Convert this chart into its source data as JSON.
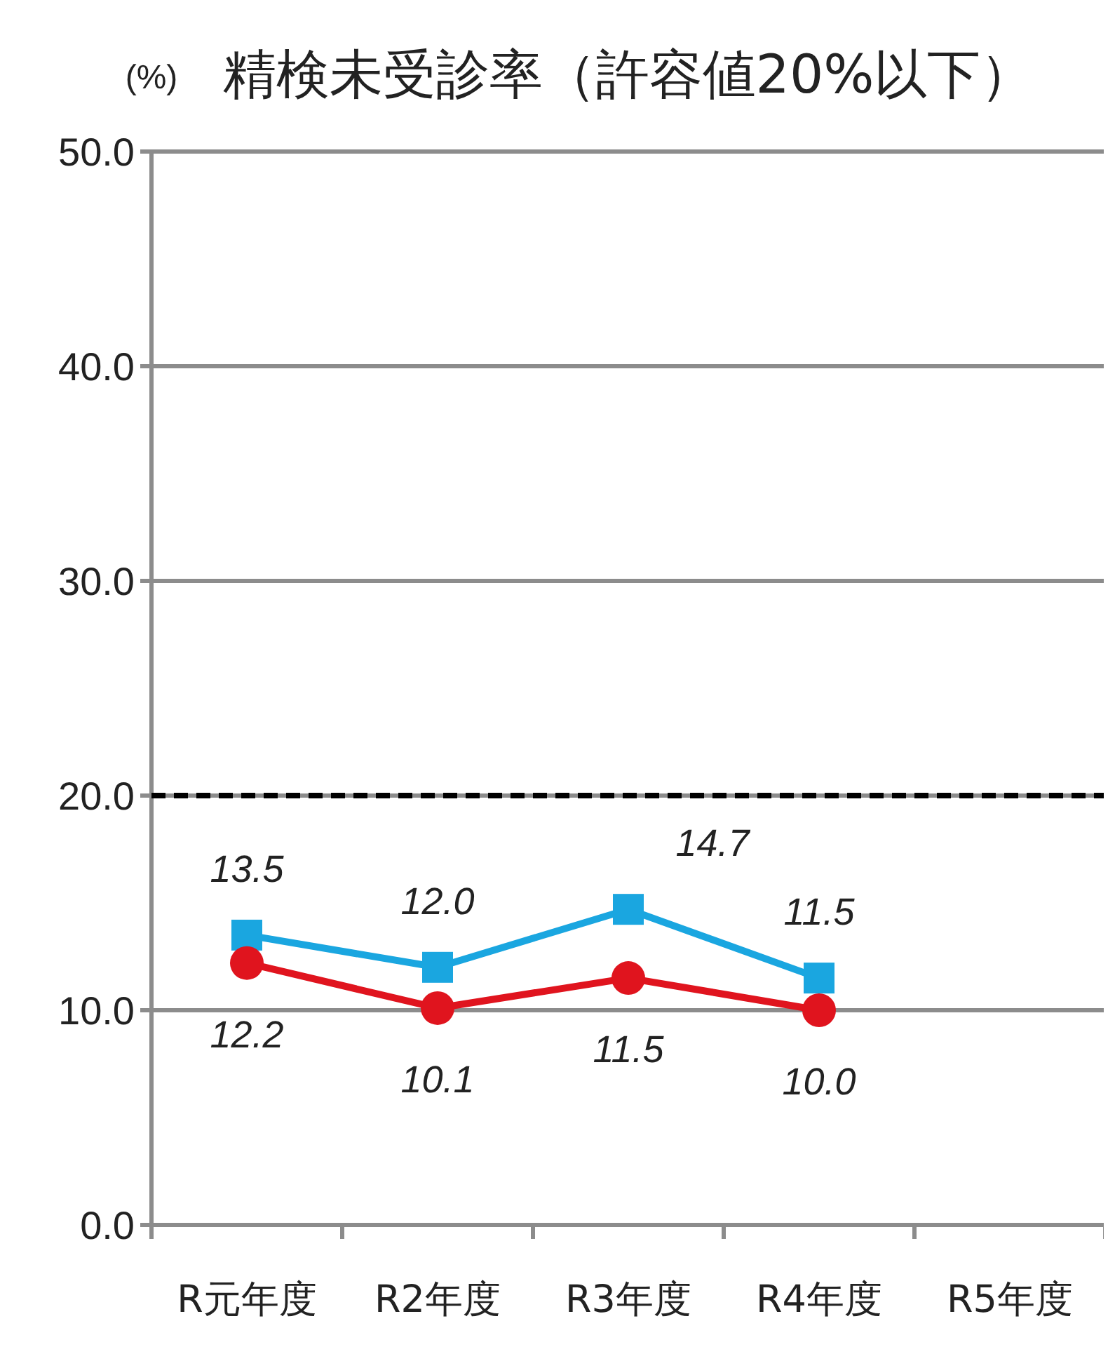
{
  "chart_data": {
    "type": "line",
    "title": "精検未受診率（許容値20%以下）",
    "ylabel": "(%)",
    "categories": [
      "R元年度",
      "R2年度",
      "R3年度",
      "R4年度",
      "R5年度"
    ],
    "series": [
      {
        "color": "#1aa6e0",
        "marker": "square",
        "values": [
          13.5,
          12.0,
          14.7,
          11.5,
          null
        ],
        "value_labels": [
          "13.5",
          "12.0",
          "14.7",
          "11.5",
          null
        ]
      },
      {
        "color": "#e0141e",
        "marker": "circle",
        "values": [
          12.2,
          10.1,
          11.5,
          10.0,
          null
        ],
        "value_labels": [
          "12.2",
          "10.1",
          "11.5",
          "10.0",
          null
        ]
      }
    ],
    "ylim": [
      0,
      50
    ],
    "yticks": [
      {
        "value": 0,
        "label": "0.0"
      },
      {
        "value": 10,
        "label": "10.0"
      },
      {
        "value": 20,
        "label": "20.0"
      },
      {
        "value": 30,
        "label": "30.0"
      },
      {
        "value": 40,
        "label": "40.0"
      },
      {
        "value": 50,
        "label": "50.0"
      }
    ],
    "grid": "y",
    "ref_lines": [
      {
        "axis": "y",
        "value": 20,
        "color": "#000000",
        "line_style": "dashed"
      }
    ]
  }
}
